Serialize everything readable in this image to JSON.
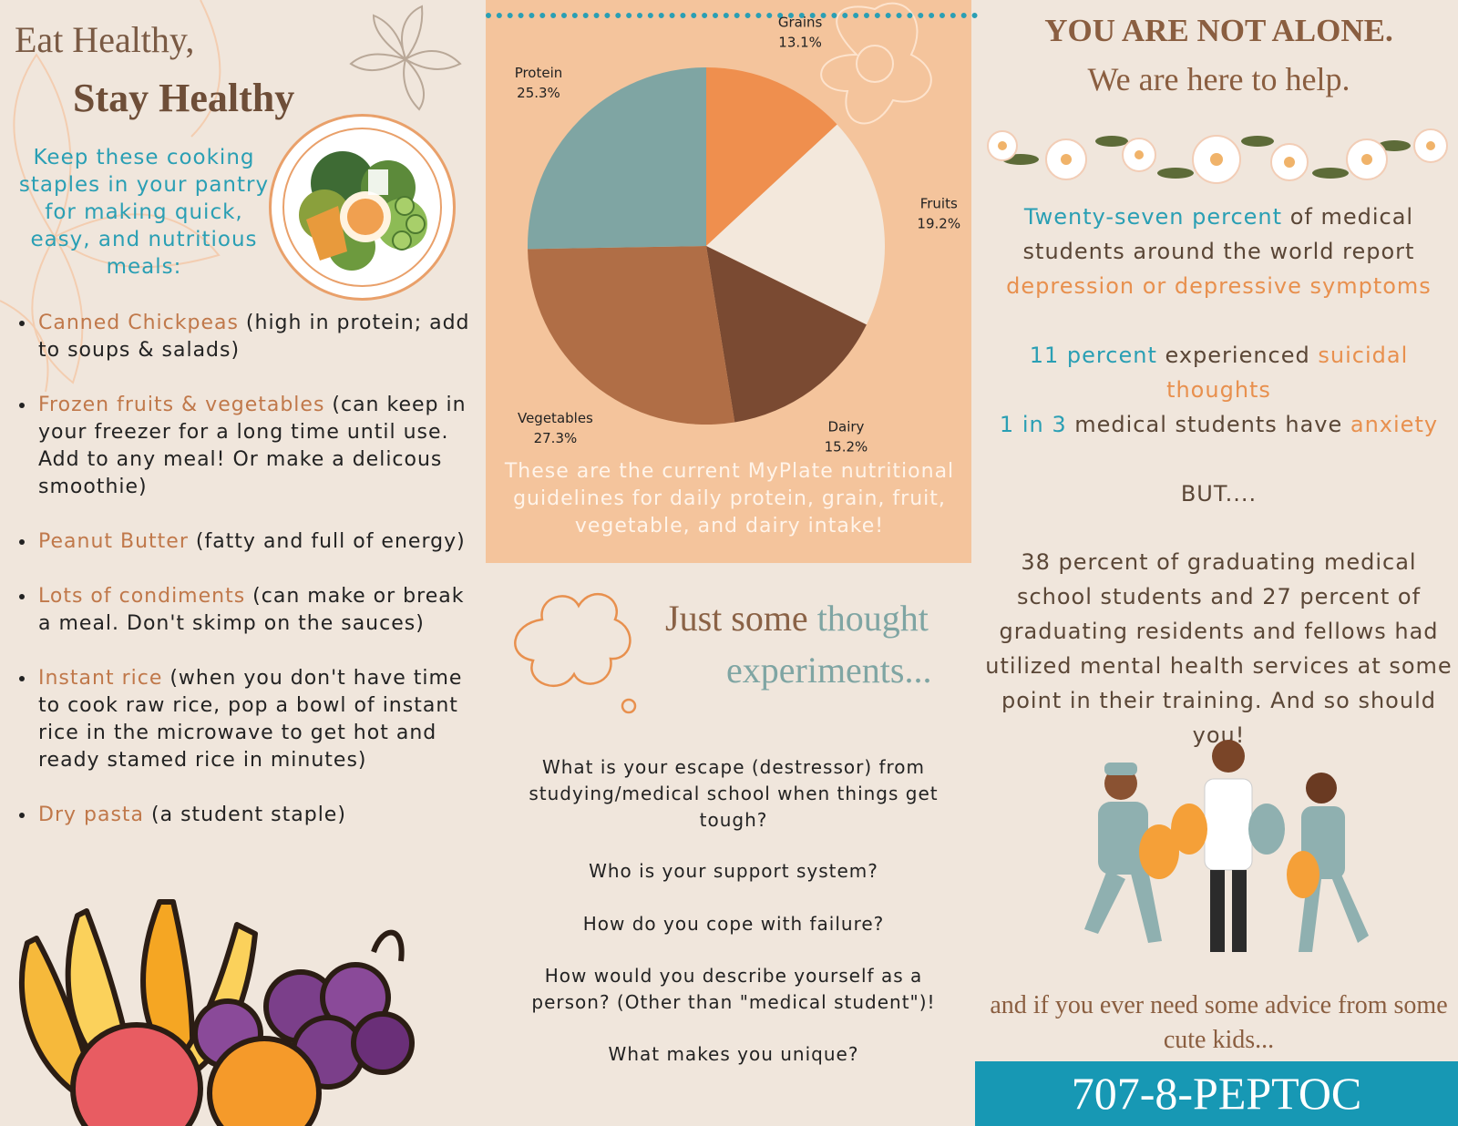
{
  "left": {
    "title_line1": "Eat Healthy,",
    "title_line2": "Stay Healthy",
    "intro": "Keep these cooking staples in your pantry for making quick, easy, and nutritious meals:",
    "staples": [
      {
        "item": "Canned Chickpeas",
        "detail": " (high in protein; add to soups & salads)"
      },
      {
        "item": "Frozen fruits & vegetables",
        "detail": " (can keep in your freezer for a long time until use. Add to any meal! Or make a delicous smoothie)"
      },
      {
        "item": "Peanut Butter",
        "detail": " (fatty and full of energy)"
      },
      {
        "item": "Lots of condiments",
        "detail": " (can make or break a meal. Don't skimp on the sauces)"
      },
      {
        "item": "Instant rice",
        "detail": " (when you don't have time to cook raw rice, pop a bowl of instant rice in the microwave to get hot and ready stamed rice in minutes)"
      },
      {
        "item": "Dry pasta",
        "detail": " (a student staple)"
      }
    ]
  },
  "chart_data": {
    "type": "pie",
    "title": "",
    "categories": [
      "Grains",
      "Fruits",
      "Dairy",
      "Vegetables",
      "Protein"
    ],
    "values": [
      13.1,
      19.2,
      15.2,
      27.3,
      25.3
    ],
    "labels": [
      "13.1%",
      "19.2%",
      "15.2%",
      "27.3%",
      "25.3%"
    ],
    "colors": [
      "#ef8f4e",
      "#f3e8dc",
      "#7a4a32",
      "#b06e46",
      "#7fa5a3"
    ]
  },
  "middle": {
    "chart_caption": "These are the current MyPlate nutritional guidelines for daily protein, grain, fruit, vegetable, and dairy intake!",
    "thought_title_a": "Just some ",
    "thought_title_b": "thought",
    "thought_title_c": "experiments...",
    "questions": [
      "What is your escape (destressor) from studying/medical school when things get tough?",
      "Who is your support system?",
      "How do you cope with failure?",
      "How would you describe yourself as a person? (Other than \"medical student\")!",
      "What makes you unique?"
    ]
  },
  "right": {
    "title_line1": "YOU ARE NOT ALONE.",
    "title_line2": "We are here to help.",
    "stat1_a": "Twenty-seven percent",
    "stat1_b": " of medical students around the world report ",
    "stat1_c": "depression or depressive symptoms",
    "stat2_a": "11 percent",
    "stat2_b": " experienced ",
    "stat2_c": "suicidal thoughts",
    "stat3_a": "1 in 3",
    "stat3_b": " medical students have ",
    "stat3_c": "anxiety",
    "but": "BUT....",
    "stat4": "38 percent of graduating medical school students and 27 percent of graduating residents and fellows had utilized mental health services at some point in their training. And so should you!",
    "cute": "and if you ever need some advice from some cute kids...",
    "phone": "707-8-PEPTOC"
  }
}
